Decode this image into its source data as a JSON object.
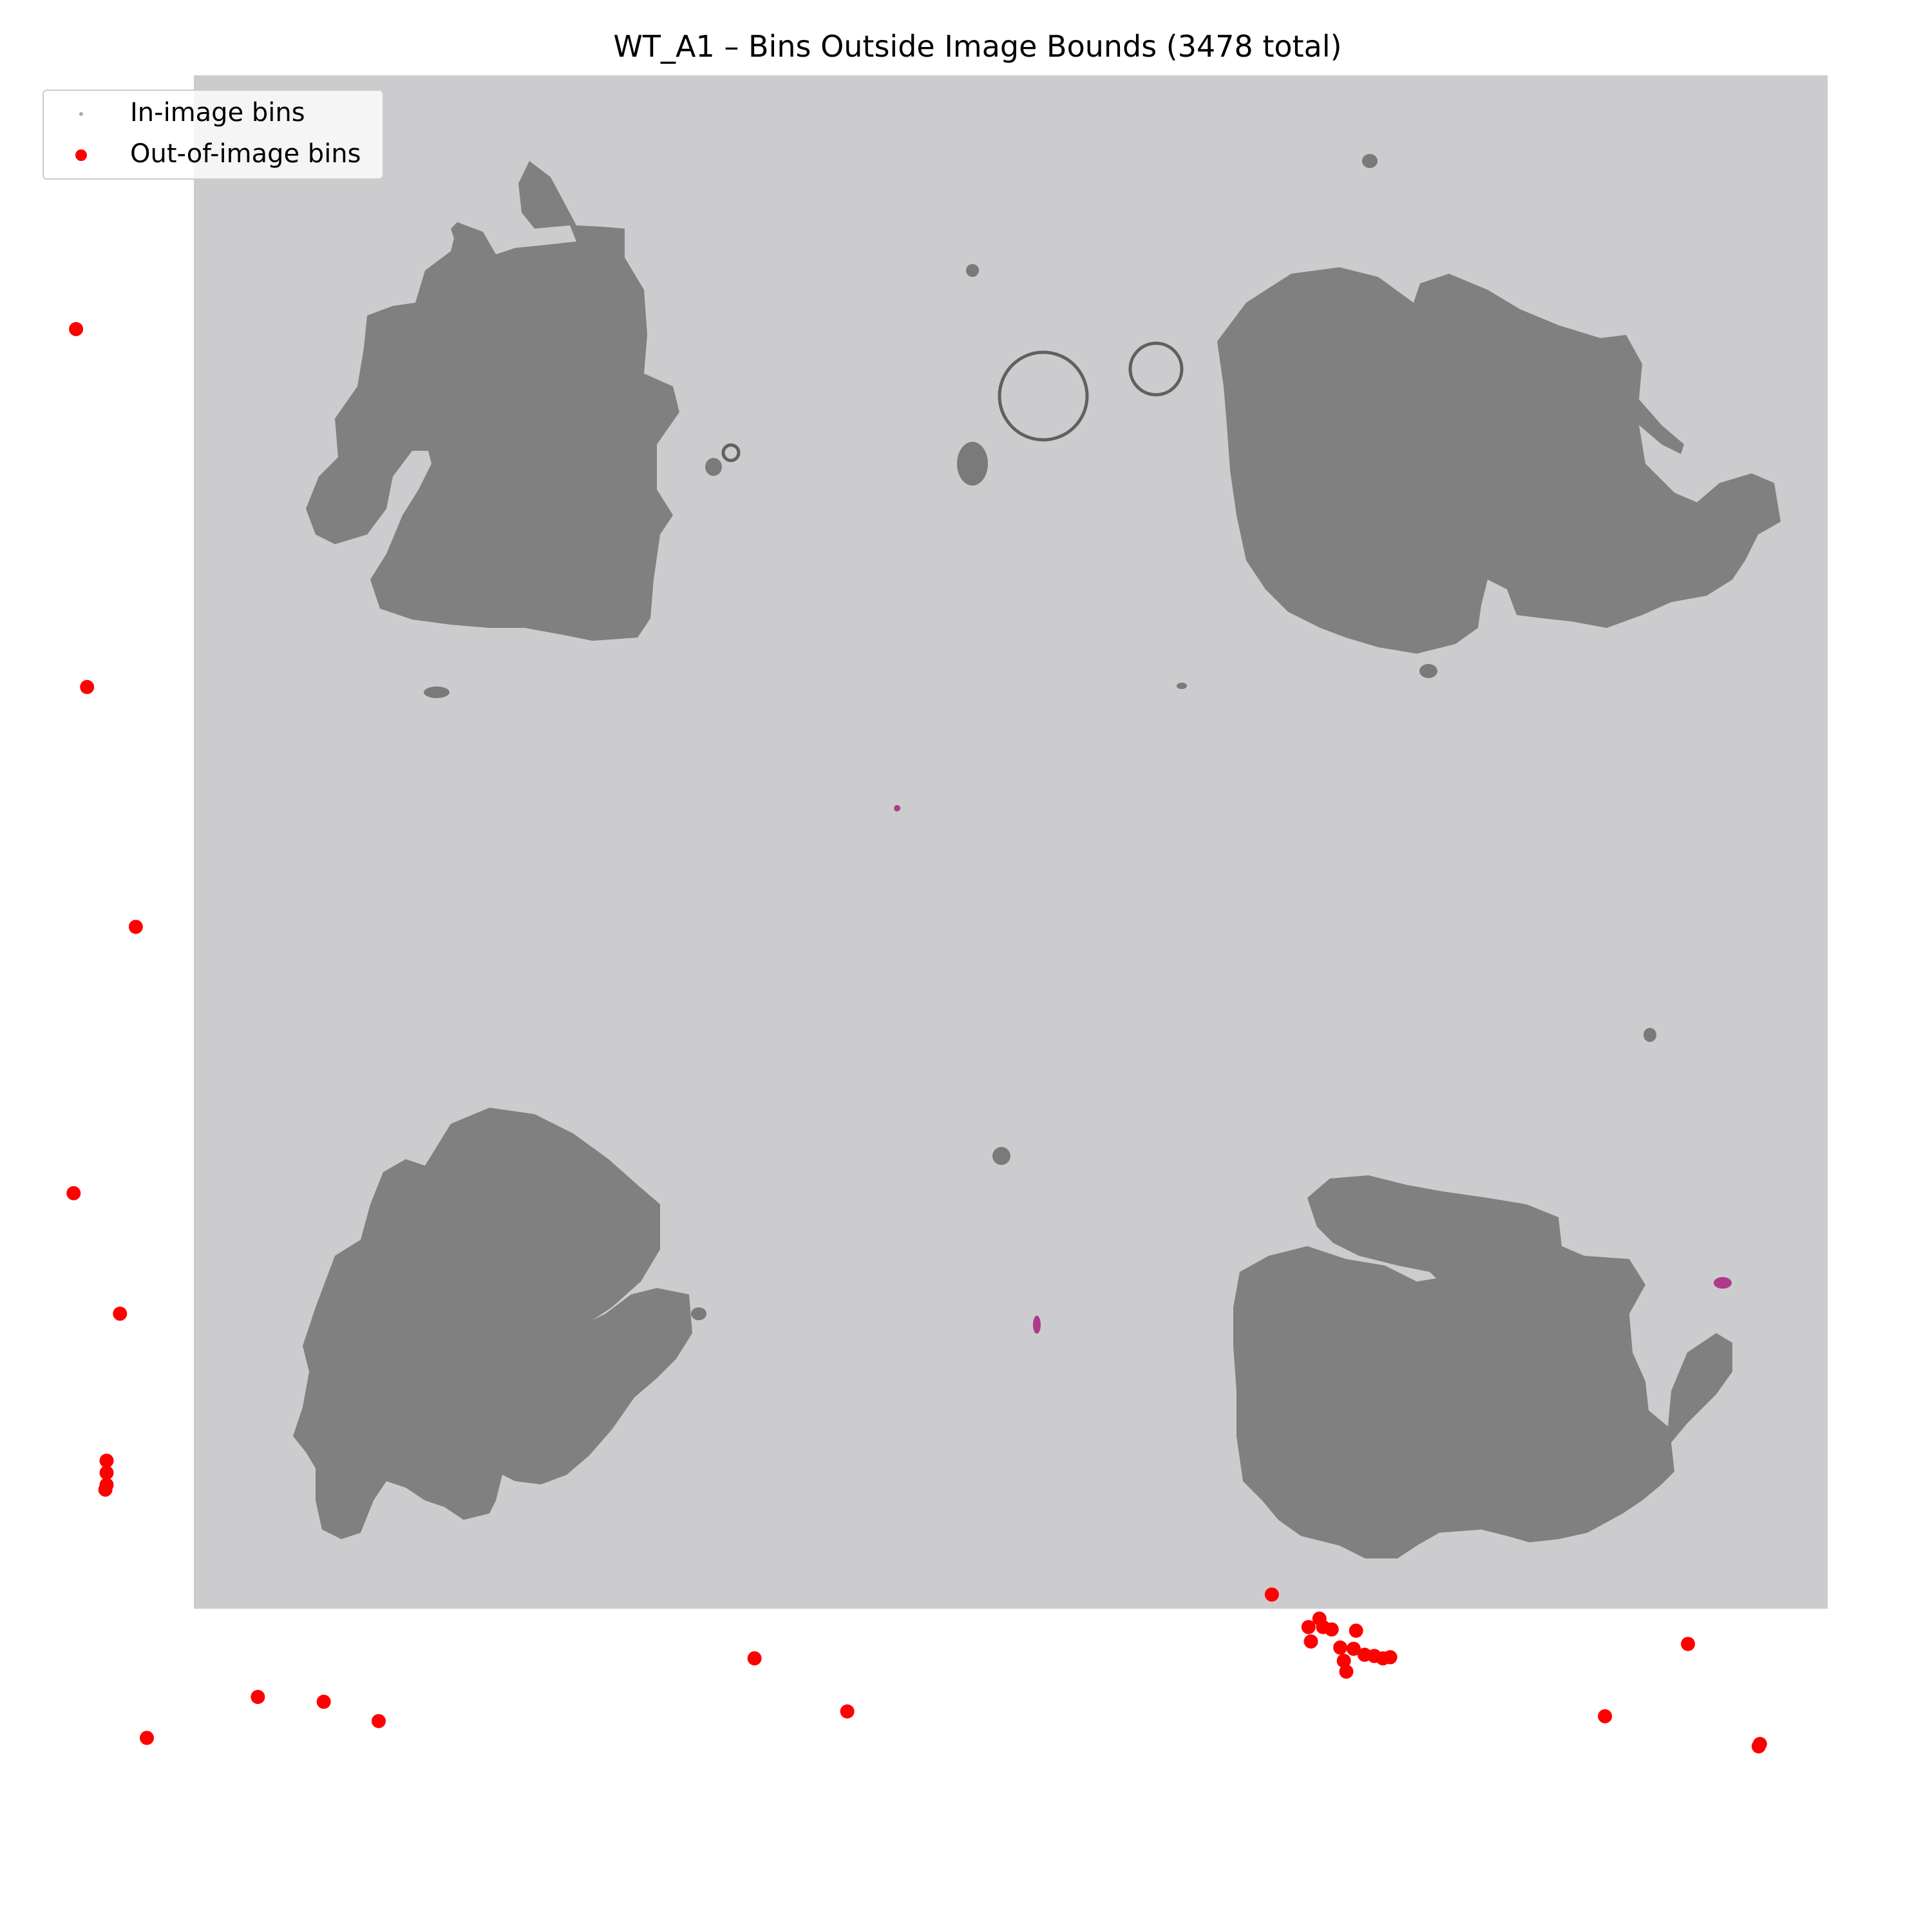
{
  "chart_data": {
    "type": "scatter",
    "title": "WT_A1 – Bins Outside Image Bounds (3478 total)",
    "xlabel": "",
    "ylabel": "",
    "axes_visible": false,
    "y_direction": "down",
    "xlim": [
      -60,
      1460
    ],
    "ylim": [
      -30,
      1525
    ],
    "background_image": {
      "description": "tissue section image with four dark gray tissue regions on light gray background",
      "extent": {
        "x": [
          0,
          1310
        ],
        "y": [
          0,
          1230
        ]
      },
      "background_color": "#cccbce",
      "tissue_color": "#808080"
    },
    "legend": {
      "placement": "top-left",
      "entries": [
        {
          "label": "In-image bins",
          "color": "#aaaaaa",
          "marker": "small dot"
        },
        {
          "label": "Out-of-image bins",
          "color": "#ff0000",
          "marker": "dot"
        }
      ]
    },
    "series": [
      {
        "name": "Out-of-image bins",
        "color": "#ff0000",
        "points": [
          [
            -61,
            211
          ],
          [
            -52,
            508
          ],
          [
            -12,
            707
          ],
          [
            -63,
            928
          ],
          [
            -25,
            1028
          ],
          [
            -36,
            1150
          ],
          [
            -36,
            1160
          ],
          [
            -36,
            1170
          ],
          [
            -37,
            1174
          ],
          [
            -3,
            1380
          ],
          [
            88,
            1346
          ],
          [
            142,
            1350
          ],
          [
            187,
            1366
          ],
          [
            495,
            1314
          ],
          [
            571,
            1358
          ],
          [
            919,
            1261
          ],
          [
            949,
            1288
          ],
          [
            958,
            1281
          ],
          [
            961,
            1288
          ],
          [
            968,
            1290
          ],
          [
            951,
            1300
          ],
          [
            975,
            1305
          ],
          [
            978,
            1316
          ],
          [
            980,
            1325
          ],
          [
            986,
            1306
          ],
          [
            995,
            1311
          ],
          [
            1003,
            1312
          ],
          [
            1010,
            1314
          ],
          [
            1016,
            1313
          ],
          [
            988,
            1291
          ],
          [
            1192,
            1362
          ],
          [
            1260,
            1302
          ],
          [
            1318,
            1387
          ],
          [
            1319,
            1385
          ]
        ]
      },
      {
        "name": "In-image bins",
        "color": "#aaaaaa",
        "points": []
      }
    ]
  }
}
